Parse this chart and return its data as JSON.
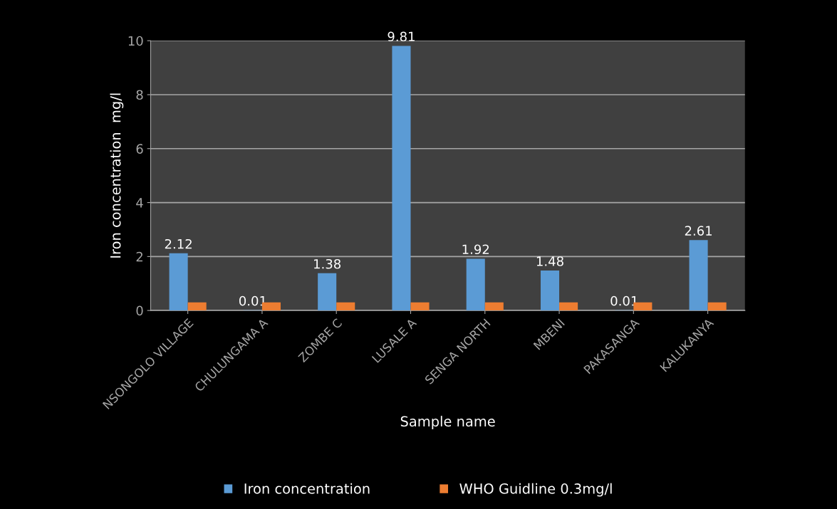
{
  "chart_data": {
    "type": "bar",
    "xlabel": "Sample name",
    "ylabel": "Iron concentration  mg/l",
    "categories": [
      "NSONGOLO VILLAGE",
      "CHULUNGAMA A",
      "ZOMBE C",
      "LUSALE A",
      "SENGA NORTH",
      "MBENI",
      "PAKASANGA",
      "KALUKANYA"
    ],
    "series": [
      {
        "name": "Iron concentration",
        "color": "#5b9bd5",
        "values": [
          2.12,
          0.01,
          1.38,
          9.81,
          1.92,
          1.48,
          0.01,
          2.61
        ],
        "value_labels": [
          "2.12",
          "0.01",
          "1.38",
          "9.81",
          "1.92",
          "1.48",
          "0.01",
          "2.61"
        ]
      },
      {
        "name": "WHO Guidline 0.3mg/l",
        "color": "#ed7d31",
        "values": [
          0.3,
          0.3,
          0.3,
          0.3,
          0.3,
          0.3,
          0.3,
          0.3
        ]
      }
    ],
    "ylim": [
      0,
      10
    ],
    "yticks": [
      0,
      2,
      4,
      6,
      8,
      10
    ],
    "grid": "y",
    "legend": "bottom"
  }
}
